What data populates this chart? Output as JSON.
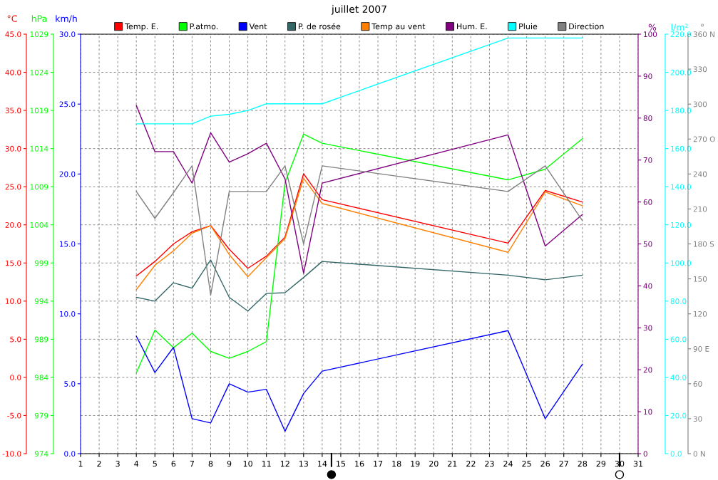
{
  "chart_data": [
    {
      "type": "line",
      "title": "juillet 2007",
      "x": [
        4,
        5,
        6,
        7,
        8,
        9,
        10,
        11,
        12,
        13,
        14,
        24,
        26,
        28
      ],
      "xlim": [
        1,
        31
      ],
      "xticks": [
        1,
        2,
        3,
        4,
        5,
        6,
        7,
        8,
        9,
        10,
        11,
        12,
        13,
        14,
        15,
        16,
        17,
        18,
        19,
        20,
        21,
        22,
        23,
        24,
        25,
        26,
        27,
        28,
        29,
        30,
        31
      ],
      "ylabel": "°C",
      "ylim": [
        -10,
        45
      ],
      "yticks": [
        {
          "value": -10,
          "label": "-10.0"
        },
        {
          "value": -5,
          "label": "-5.0"
        },
        {
          "value": 0,
          "label": "0.0"
        },
        {
          "value": 5,
          "label": "5.0"
        },
        {
          "value": 10,
          "label": "10.0"
        },
        {
          "value": 15,
          "label": "15.0"
        },
        {
          "value": 20,
          "label": "20.0"
        },
        {
          "value": 25,
          "label": "25.0"
        },
        {
          "value": 30,
          "label": "30.0"
        },
        {
          "value": 35,
          "label": "35.0"
        },
        {
          "value": 40,
          "label": "40.0"
        },
        {
          "value": 45,
          "label": "45.0"
        }
      ],
      "y2label": "hPa",
      "y2lim": [
        974,
        1029
      ],
      "y2ticks": [
        974,
        979,
        984,
        989,
        994,
        999,
        1004,
        1009,
        1014,
        1019,
        1024,
        1029
      ],
      "y3label": "km/h",
      "y3lim": [
        0,
        30
      ],
      "y3ticks": [
        {
          "value": 0,
          "label": "0.0"
        },
        {
          "value": 5,
          "label": "5.0"
        },
        {
          "value": 10,
          "label": "10.0"
        },
        {
          "value": 15,
          "label": "15.0"
        },
        {
          "value": 20,
          "label": "20.0"
        },
        {
          "value": 25,
          "label": "25.0"
        },
        {
          "value": 30,
          "label": "30.0"
        }
      ],
      "grid": true,
      "legend": "top",
      "marker": "none",
      "line_style": "solid",
      "series": [
        {
          "name": "Temp. E.",
          "color": "#ff0000",
          "values": [
            13.3,
            15.2,
            17.5,
            19.1,
            19.9,
            16.8,
            14.3,
            15.9,
            18.4,
            26.7,
            23.3,
            17.6,
            24.5,
            23.0
          ]
        },
        {
          "name": "P.atmo.",
          "color": "#00ff00",
          "axis": "y2",
          "values": [
            984.6,
            990.2,
            987.9,
            989.8,
            987.4,
            986.5,
            987.4,
            988.7,
            1009.5,
            1015.9,
            1014.7,
            1009.9,
            1011.3,
            1015.3
          ]
        },
        {
          "name": "Vent",
          "color": "#0000ff",
          "axis": "y3",
          "values": [
            8.4,
            5.8,
            7.6,
            2.5,
            2.2,
            5.0,
            4.4,
            4.6,
            1.6,
            4.3,
            5.9,
            8.8,
            2.5,
            6.4
          ]
        },
        {
          "name": "P. de rosée",
          "color": "#336666",
          "values": [
            10.5,
            10.0,
            12.4,
            11.7,
            15.4,
            10.5,
            8.7,
            11.0,
            11.1,
            13.1,
            15.2,
            13.4,
            12.8,
            13.4
          ]
        },
        {
          "name": "Temp au vent",
          "color": "#ff8000",
          "values": [
            11.5,
            14.7,
            16.6,
            18.9,
            19.9,
            16.1,
            13.2,
            15.7,
            18.2,
            26.1,
            22.8,
            16.4,
            24.3,
            22.5
          ]
        }
      ]
    },
    {
      "type": "line",
      "x": [
        4,
        5,
        6,
        7,
        8,
        9,
        10,
        11,
        12,
        13,
        14,
        24,
        26,
        28
      ],
      "xlim": [
        1,
        31
      ],
      "tick_labels": "y",
      "ylabel": "%",
      "ylim": [
        0,
        100
      ],
      "yticks": [
        0,
        10,
        20,
        30,
        40,
        50,
        60,
        70,
        80,
        90,
        100
      ],
      "y2label": "l/m²",
      "y2lim": [
        0,
        220
      ],
      "y2ticks": [
        {
          "value": 0,
          "label": "0.0"
        },
        {
          "value": 20,
          "label": "20.0"
        },
        {
          "value": 40,
          "label": "40.0"
        },
        {
          "value": 60,
          "label": "60.0"
        },
        {
          "value": 80,
          "label": "80.0"
        },
        {
          "value": 100,
          "label": "100.0"
        },
        {
          "value": 120,
          "label": "120.0"
        },
        {
          "value": 140,
          "label": "140.0"
        },
        {
          "value": 160,
          "label": "160.0"
        },
        {
          "value": 180,
          "label": "180.0"
        },
        {
          "value": 200,
          "label": "200.0"
        },
        {
          "value": 220,
          "label": "220.0"
        }
      ],
      "y3label": "°",
      "y3lim": [
        0,
        360
      ],
      "y3ticks": [
        {
          "value": 0,
          "label": "0 N"
        },
        30,
        60,
        {
          "value": 90,
          "label": "90 E"
        },
        120,
        150,
        {
          "value": 180,
          "label": "180 S"
        },
        210,
        240,
        {
          "value": 270,
          "label": "270 O"
        },
        300,
        330,
        {
          "value": 360,
          "label": "360 N"
        }
      ],
      "legend": "top",
      "marker": "none",
      "line_style": "solid",
      "series": [
        {
          "name": "Hum. E.",
          "color": "#800080",
          "values": [
            83,
            72,
            72,
            64.5,
            76.5,
            69.5,
            71.5,
            74,
            65.5,
            43,
            64.5,
            76,
            49.5,
            57
          ]
        },
        {
          "name": "Pluie",
          "color": "#00ffff",
          "axis": "y2",
          "values": [
            173,
            173,
            173,
            173,
            177,
            178,
            180,
            183.5,
            183.5,
            183.5,
            183.5,
            218,
            218,
            218
          ]
        },
        {
          "name": "Direction",
          "color": "#808080",
          "axis": "y3",
          "values": [
            225,
            202,
            224,
            247,
            136,
            225,
            225,
            225,
            247,
            180,
            247,
            225,
            247,
            200
          ]
        }
      ]
    }
  ]
}
